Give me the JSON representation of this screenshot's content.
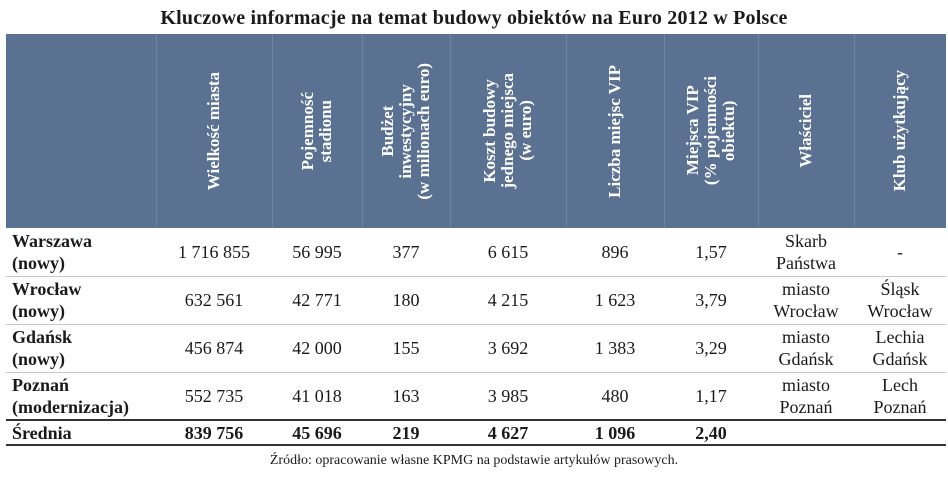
{
  "title": "Kluczowe informacje na temat budowy obiektów na Euro 2012 w Polsce",
  "headers": [
    "",
    "Wielkość miasta",
    "Pojemność\nstadionu",
    "Budżet\ninwestycyjny\n(w milionach euro)",
    "Koszt budowy\njednego miejsca\n(w euro)",
    "Liczba miejsc VIP",
    "Miejsca VIP\n(% pojemności\nobiektu)",
    "Właściciel",
    "Klub użytkujący"
  ],
  "rows": [
    [
      "Warszawa\n(nowy)",
      "1 716 855",
      "56 995",
      "377",
      "6 615",
      "896",
      "1,57",
      "Skarb\nPaństwa",
      "-"
    ],
    [
      "Wrocław\n(nowy)",
      "632 561",
      "42 771",
      "180",
      "4 215",
      "1 623",
      "3,79",
      "miasto\nWrocław",
      "Śląsk\nWrocław"
    ],
    [
      "Gdańsk\n(nowy)",
      "456 874",
      "42 000",
      "155",
      "3 692",
      "1 383",
      "3,29",
      "miasto\nGdańsk",
      "Lechia\nGdańsk"
    ],
    [
      "Poznań\n(modernizacja)",
      "552 735",
      "41 018",
      "163",
      "3 985",
      "480",
      "1,17",
      "miasto\nPoznań",
      "Lech\nPoznań"
    ]
  ],
  "average": [
    "Średnia",
    "839 756",
    "45 696",
    "219",
    "4 627",
    "1 096",
    "2,40",
    "",
    ""
  ],
  "source": "Źródło: opracowanie własne KPMG na podstawie artykułów prasowych.",
  "colors": {
    "header_bg": "#5b7191",
    "header_text": "#ffffff"
  }
}
